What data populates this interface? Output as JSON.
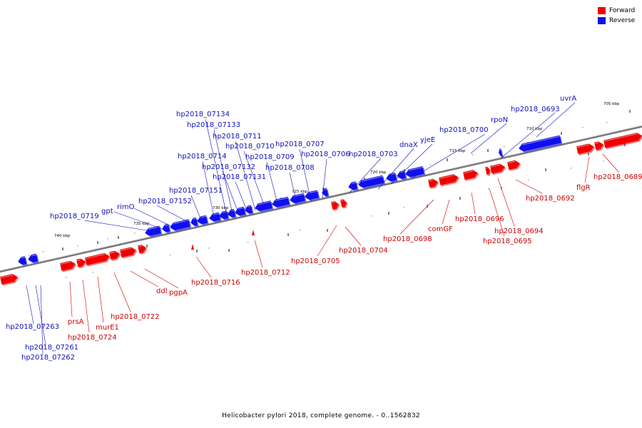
{
  "caption": "Helicobacter pylori 2018, complete genome. - 0..1562832",
  "colors": {
    "forward": "#ee0000",
    "reverse": "#1010ee",
    "forward_label": "#cc0000",
    "reverse_label": "#1010bb"
  },
  "legend": [
    {
      "label": "Forward",
      "color": "#ee0000"
    },
    {
      "label": "Reverse",
      "color": "#1010ee"
    }
  ],
  "ticks": [
    "740 kbp",
    "735 kbp",
    "730 kbp",
    "725 kbp",
    "720 kbp",
    "715 kbp",
    "710 kbp",
    "705 kbp"
  ],
  "genes": {
    "reverse": [
      "hp2018_07263",
      "hp2018_07261",
      "hp2018_07262",
      "hp2018_0719",
      "gpt",
      "rimO",
      "hp2018_07152",
      "hp2018_07151",
      "hp2018_0714",
      "hp2018_07134",
      "hp2018_07133",
      "hp2018_07132",
      "hp2018_07131",
      "hp2018_0711",
      "hp2018_0710",
      "hp2018_0709",
      "hp2018_0708",
      "hp2018_0707",
      "hp2018_0706",
      "hp2018_0703",
      "dnaX",
      "yjeE",
      "hp2018_0700",
      "rpoN",
      "hp2018_0693",
      "uvrA"
    ],
    "forward": [
      "prsA",
      "hp2018_0724",
      "murE1",
      "hp2018_0722",
      "ddl",
      "pgpA",
      "hp2018_0716",
      "hp2018_0712",
      "hp2018_0705",
      "hp2018_0704",
      "hp2018_0698",
      "comGF",
      "hp2018_0696",
      "hp2018_0694",
      "hp2018_0695",
      "hp2018_0692",
      "flgR",
      "hp2018_0689"
    ]
  }
}
